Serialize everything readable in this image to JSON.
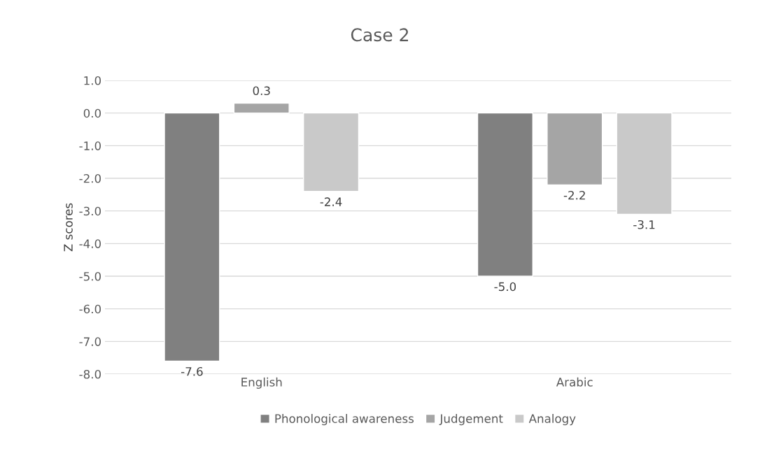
{
  "chart_data": {
    "type": "bar",
    "title": "Case 2",
    "ylabel": "Z scores",
    "categories": [
      "English",
      "Arabic"
    ],
    "series": [
      {
        "name": "Phonological awareness",
        "color": "#808080",
        "values": [
          -7.6,
          -5.0
        ],
        "value_labels": [
          "-7.6",
          "-5.0"
        ]
      },
      {
        "name": "Judgement",
        "color": "#a5a5a5",
        "values": [
          0.3,
          -2.2
        ],
        "value_labels": [
          "0.3",
          "-2.2"
        ]
      },
      {
        "name": "Analogy",
        "color": "#c9c9c9",
        "values": [
          -2.4,
          -3.1
        ],
        "value_labels": [
          "-2.4",
          "-3.1"
        ]
      }
    ],
    "ylim": [
      -8.0,
      1.0
    ],
    "yticks": [
      {
        "value": 1.0,
        "label": "1.0"
      },
      {
        "value": 0.0,
        "label": "0.0"
      },
      {
        "value": -1.0,
        "label": "-1.0"
      },
      {
        "value": -2.0,
        "label": "-2.0"
      },
      {
        "value": -3.0,
        "label": "-3.0"
      },
      {
        "value": -4.0,
        "label": "-4.0"
      },
      {
        "value": -5.0,
        "label": "-5.0"
      },
      {
        "value": -6.0,
        "label": "-6.0"
      },
      {
        "value": -7.0,
        "label": "-7.0"
      },
      {
        "value": -8.0,
        "label": "-8.0"
      }
    ],
    "grid": "y",
    "legend": "bottom"
  }
}
